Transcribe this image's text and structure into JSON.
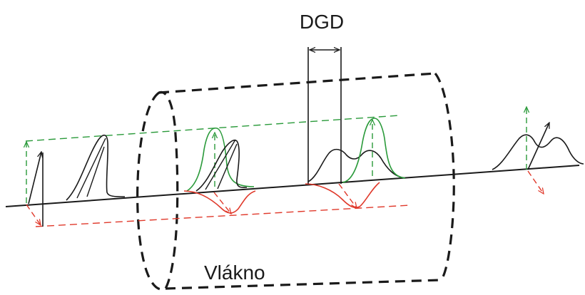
{
  "labels": {
    "dgd": "DGD",
    "fiber": "Vlákno"
  },
  "colors": {
    "ink": "#1a1a1a",
    "green": "#2a9a3a",
    "red": "#e0392b"
  }
}
